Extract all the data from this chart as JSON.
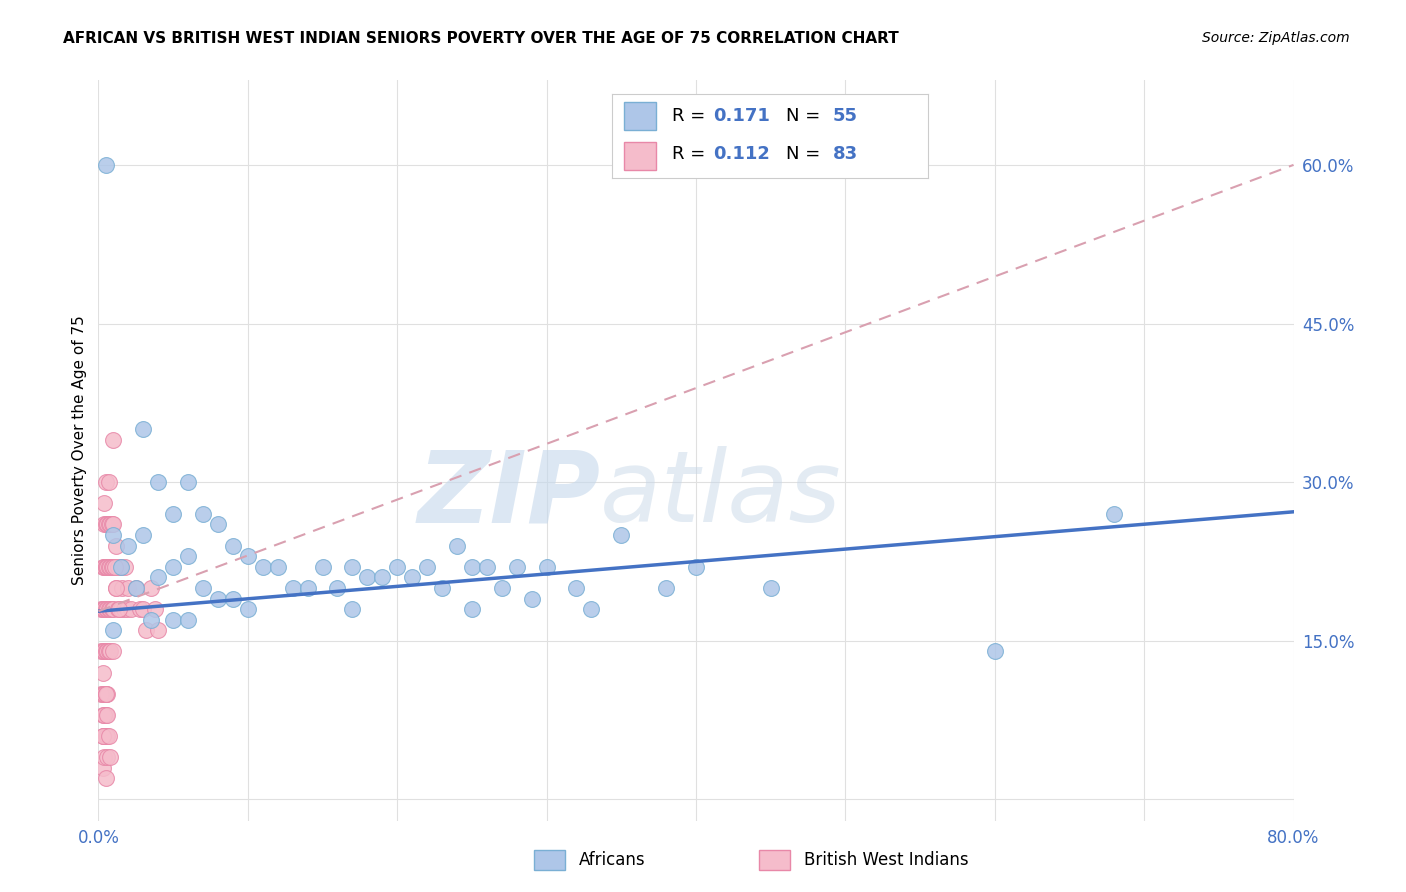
{
  "title": "AFRICAN VS BRITISH WEST INDIAN SENIORS POVERTY OVER THE AGE OF 75 CORRELATION CHART",
  "source": "Source: ZipAtlas.com",
  "ylabel": "Seniors Poverty Over the Age of 75",
  "xlim": [
    0.0,
    0.8
  ],
  "ylim": [
    -0.02,
    0.68
  ],
  "ytick_positions": [
    0.0,
    0.15,
    0.3,
    0.45,
    0.6
  ],
  "ytick_labels": [
    "",
    "15.0%",
    "30.0%",
    "45.0%",
    "60.0%"
  ],
  "grid_color": "#e0e0e0",
  "background_color": "#ffffff",
  "african_color": "#aec6e8",
  "african_edge": "#7aafd4",
  "bwi_color": "#f5bccb",
  "bwi_edge": "#e888a8",
  "trend_blue": "#4472c4",
  "trend_pink": "#d9a0b0",
  "tick_color": "#4472c4",
  "watermark_color": "#c8d8ea",
  "african_line_start_y": 0.178,
  "african_line_end_y": 0.272,
  "pink_line_start_y": 0.178,
  "pink_line_end_y": 0.6,
  "africans_x": [
    0.005,
    0.01,
    0.01,
    0.015,
    0.02,
    0.025,
    0.03,
    0.03,
    0.035,
    0.04,
    0.04,
    0.05,
    0.05,
    0.05,
    0.06,
    0.06,
    0.06,
    0.07,
    0.07,
    0.08,
    0.08,
    0.09,
    0.09,
    0.1,
    0.1,
    0.11,
    0.12,
    0.13,
    0.14,
    0.15,
    0.16,
    0.17,
    0.17,
    0.18,
    0.19,
    0.2,
    0.21,
    0.22,
    0.23,
    0.24,
    0.25,
    0.25,
    0.26,
    0.27,
    0.28,
    0.29,
    0.3,
    0.32,
    0.33,
    0.35,
    0.38,
    0.4,
    0.45,
    0.6,
    0.68
  ],
  "africans_y": [
    0.6,
    0.25,
    0.16,
    0.22,
    0.24,
    0.2,
    0.35,
    0.25,
    0.17,
    0.3,
    0.21,
    0.27,
    0.22,
    0.17,
    0.3,
    0.23,
    0.17,
    0.27,
    0.2,
    0.26,
    0.19,
    0.24,
    0.19,
    0.23,
    0.18,
    0.22,
    0.22,
    0.2,
    0.2,
    0.22,
    0.2,
    0.22,
    0.18,
    0.21,
    0.21,
    0.22,
    0.21,
    0.22,
    0.2,
    0.24,
    0.22,
    0.18,
    0.22,
    0.2,
    0.22,
    0.19,
    0.22,
    0.2,
    0.18,
    0.25,
    0.2,
    0.22,
    0.2,
    0.14,
    0.27
  ],
  "bwi_x": [
    0.002,
    0.002,
    0.002,
    0.003,
    0.003,
    0.003,
    0.003,
    0.003,
    0.003,
    0.004,
    0.004,
    0.004,
    0.004,
    0.004,
    0.004,
    0.004,
    0.004,
    0.005,
    0.005,
    0.005,
    0.005,
    0.005,
    0.005,
    0.005,
    0.005,
    0.005,
    0.006,
    0.006,
    0.006,
    0.006,
    0.006,
    0.006,
    0.007,
    0.007,
    0.007,
    0.007,
    0.007,
    0.008,
    0.008,
    0.008,
    0.008,
    0.009,
    0.009,
    0.009,
    0.01,
    0.01,
    0.01,
    0.01,
    0.012,
    0.012,
    0.013,
    0.013,
    0.015,
    0.015,
    0.016,
    0.017,
    0.018,
    0.019,
    0.02,
    0.022,
    0.025,
    0.028,
    0.03,
    0.032,
    0.035,
    0.038,
    0.04,
    0.01,
    0.011,
    0.012,
    0.014,
    0.003,
    0.004,
    0.005,
    0.006,
    0.003,
    0.004,
    0.003,
    0.005,
    0.006,
    0.007,
    0.008
  ],
  "bwi_y": [
    0.18,
    0.14,
    0.1,
    0.22,
    0.18,
    0.14,
    0.1,
    0.06,
    0.03,
    0.26,
    0.22,
    0.18,
    0.14,
    0.1,
    0.06,
    0.18,
    0.28,
    0.26,
    0.22,
    0.18,
    0.14,
    0.1,
    0.06,
    0.02,
    0.22,
    0.3,
    0.26,
    0.22,
    0.18,
    0.14,
    0.1,
    0.06,
    0.26,
    0.22,
    0.18,
    0.14,
    0.3,
    0.26,
    0.22,
    0.18,
    0.14,
    0.26,
    0.22,
    0.18,
    0.26,
    0.22,
    0.18,
    0.14,
    0.24,
    0.2,
    0.22,
    0.18,
    0.22,
    0.18,
    0.2,
    0.18,
    0.22,
    0.18,
    0.2,
    0.18,
    0.2,
    0.18,
    0.18,
    0.16,
    0.2,
    0.18,
    0.16,
    0.34,
    0.22,
    0.2,
    0.18,
    0.08,
    0.04,
    0.08,
    0.04,
    0.12,
    0.08,
    0.06,
    0.1,
    0.08,
    0.06,
    0.04
  ]
}
